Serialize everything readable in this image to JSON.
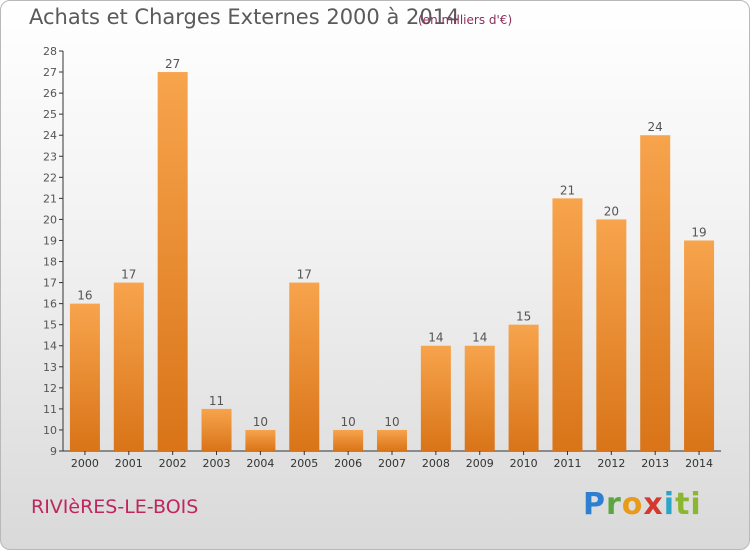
{
  "chart_data": {
    "type": "bar",
    "title": "Achats et Charges Externes 2000 à 2014",
    "subtitle": "(en milliers d'€)",
    "categories": [
      "2000",
      "2001",
      "2002",
      "2003",
      "2004",
      "2005",
      "2006",
      "2007",
      "2008",
      "2009",
      "2010",
      "2011",
      "2012",
      "2013",
      "2014"
    ],
    "values": [
      16,
      17,
      27,
      11,
      10,
      17,
      10,
      10,
      14,
      14,
      15,
      21,
      20,
      24,
      19
    ],
    "ylim": [
      9,
      28
    ],
    "yticks": [
      9,
      10,
      11,
      12,
      13,
      14,
      15,
      16,
      17,
      18,
      19,
      20,
      21,
      22,
      23,
      24,
      25,
      26,
      27,
      28
    ],
    "grid": false,
    "legend": "none",
    "colors": {
      "bar_light": "#f7a44d",
      "bar_dark": "#d97418",
      "text": "#555555"
    }
  },
  "footer": {
    "city": "RIVIèRES-LE-BOIS",
    "logo": "Proxiti"
  }
}
